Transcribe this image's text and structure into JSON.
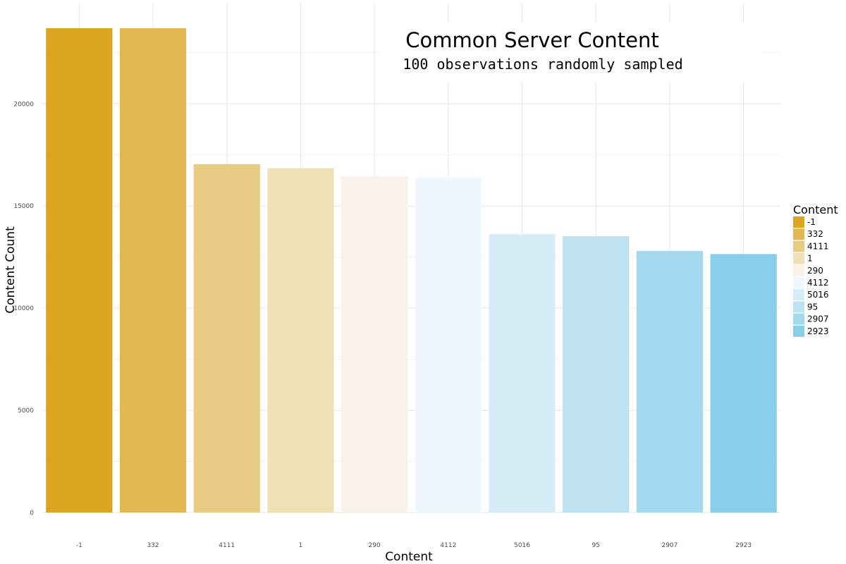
{
  "chart_data": {
    "type": "bar",
    "title": "Common Server Content",
    "subtitle": "100 observations randomly sampled",
    "xlabel": "Content",
    "ylabel": "Content Count",
    "ylim": [
      0,
      23700
    ],
    "y_ticks": [
      0,
      5000,
      10000,
      15000,
      20000
    ],
    "grid": true,
    "legend": {
      "title": "Content",
      "position": "right"
    },
    "categories": [
      "-1",
      "332",
      "4111",
      "1",
      "290",
      "4112",
      "5016",
      "95",
      "2907",
      "2923"
    ],
    "values": [
      23700,
      23700,
      17050,
      16850,
      16450,
      16380,
      13620,
      13520,
      12800,
      12650
    ],
    "colors": [
      "#DAA520",
      "#E1B852",
      "#E9CC84",
      "#F0E0B6",
      "#F8F2E8",
      "#EEF8FC",
      "#D6EDF7",
      "#BDE2F2",
      "#A3D8ED",
      "#89CEE8"
    ]
  }
}
